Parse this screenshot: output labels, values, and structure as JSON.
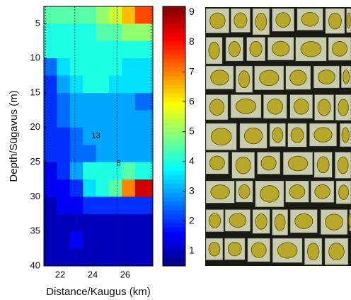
{
  "chart_data": {
    "type": "heatmap",
    "colormap": "jet",
    "xlabel": "Distance/Kaugus (km)",
    "ylabel": "Depth/Sügavus (m)",
    "xlim": [
      21,
      27.7
    ],
    "ylim": [
      2.5,
      40
    ],
    "y_inverted": true,
    "xticks": [
      22,
      24,
      26
    ],
    "yticks": [
      5,
      10,
      15,
      20,
      25,
      30,
      35,
      40
    ],
    "zlim": [
      0.5,
      9.2
    ],
    "zticks": [
      1,
      2,
      3,
      4,
      5,
      6,
      7,
      8,
      9
    ],
    "stations": [
      21.1,
      22.9,
      25.5,
      27.6
    ],
    "annotations": [
      {
        "text": "13",
        "x": 24.2,
        "y": 21.2
      },
      {
        "text": "8",
        "x": 25.6,
        "y": 25.2
      }
    ],
    "x": [
      21.4,
      22.2,
      23.0,
      23.8,
      24.6,
      25.4,
      26.2,
      27.0
    ],
    "y": [
      3.75,
      6.25,
      8.75,
      11.25,
      13.75,
      16.25,
      18.75,
      21.25,
      23.75,
      26.25,
      28.75,
      31.25,
      33.75,
      36.25,
      38.75
    ],
    "z": [
      [
        4.5,
        4.5,
        4.5,
        4.5,
        5,
        5.5,
        6.5,
        7.5
      ],
      [
        4,
        4,
        4,
        4,
        4.5,
        4.5,
        5,
        5
      ],
      [
        4,
        4,
        4,
        4,
        4,
        4,
        4,
        4
      ],
      [
        2.5,
        3.5,
        4,
        4,
        4,
        4,
        3.5,
        3.5
      ],
      [
        2,
        3,
        3.5,
        4,
        4,
        3.5,
        3.5,
        3.5
      ],
      [
        2,
        2.5,
        3,
        3,
        3,
        3,
        3,
        2.5
      ],
      [
        2,
        2.5,
        3,
        3,
        3,
        3,
        3,
        3
      ],
      [
        2,
        2,
        2.5,
        3,
        3,
        3,
        3,
        3
      ],
      [
        2,
        2,
        2.5,
        2.5,
        3,
        3,
        3,
        3
      ],
      [
        1.5,
        2,
        3,
        4,
        4,
        4,
        4.5,
        4
      ],
      [
        1.5,
        1.5,
        2,
        3.5,
        4,
        4.5,
        7,
        8.5
      ],
      [
        1,
        1.5,
        1.5,
        2,
        2,
        2,
        2,
        2
      ],
      [
        1,
        1,
        1,
        1,
        1,
        1,
        1,
        1
      ],
      [
        1,
        1,
        1.5,
        1,
        1,
        1,
        1,
        1
      ],
      [
        1,
        1,
        1,
        1,
        1,
        1,
        1,
        1
      ]
    ]
  }
}
